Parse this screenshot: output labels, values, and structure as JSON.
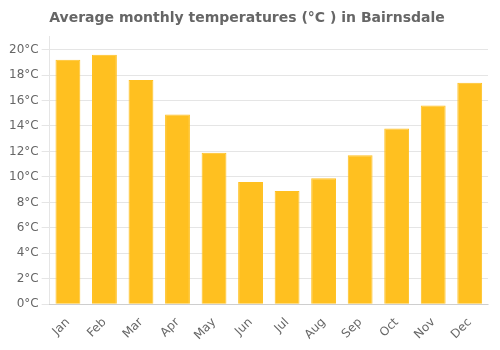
{
  "chart_data": {
    "type": "bar",
    "title": "Average monthly temperatures (°C ) in Bairnsdale",
    "categories": [
      "Jan",
      "Feb",
      "Mar",
      "Apr",
      "May",
      "Jun",
      "Jul",
      "Aug",
      "Sep",
      "Oct",
      "Nov",
      "Dec"
    ],
    "values": [
      19.2,
      19.6,
      17.6,
      14.9,
      11.9,
      9.6,
      8.9,
      9.9,
      11.7,
      13.8,
      15.6,
      17.4
    ],
    "color": "#FFC020",
    "ylim": [
      0,
      21
    ],
    "yticks": [
      {
        "value": 0,
        "label": "0°C"
      },
      {
        "value": 2,
        "label": "2°C"
      },
      {
        "value": 4,
        "label": "4°C"
      },
      {
        "value": 6,
        "label": "6°C"
      },
      {
        "value": 8,
        "label": "8°C"
      },
      {
        "value": 10,
        "label": "10°C"
      },
      {
        "value": 12,
        "label": "12°C"
      },
      {
        "value": 14,
        "label": "14°C"
      },
      {
        "value": 16,
        "label": "16°C"
      },
      {
        "value": 18,
        "label": "18°C"
      },
      {
        "value": 20,
        "label": "20°C"
      }
    ],
    "grid": true
  }
}
